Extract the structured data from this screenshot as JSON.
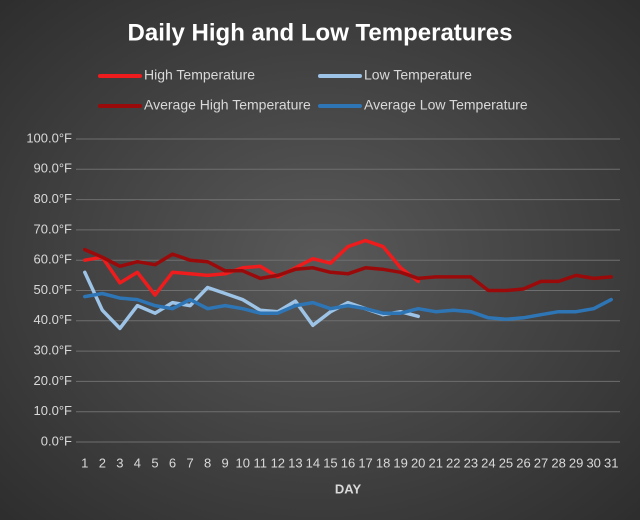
{
  "chart_data": {
    "type": "line",
    "title": "Daily High and Low Temperatures",
    "x_label": "DAY",
    "categories": [
      "1",
      "2",
      "3",
      "4",
      "5",
      "6",
      "7",
      "8",
      "9",
      "10",
      "11",
      "12",
      "13",
      "14",
      "15",
      "16",
      "17",
      "18",
      "19",
      "20",
      "21",
      "22",
      "23",
      "24",
      "25",
      "26",
      "27",
      "28",
      "29",
      "30",
      "31"
    ],
    "series": [
      {
        "name": "High Temperature",
        "color": "#ee1c1c",
        "values": [
          60,
          61,
          52.5,
          56,
          48.5,
          56,
          55.5,
          55,
          55.5,
          57.5,
          58,
          54.5,
          57.5,
          60.5,
          59,
          64.5,
          66.5,
          64.5,
          57.5,
          53,
          null,
          null,
          null,
          null,
          null,
          null,
          null,
          null,
          null,
          null,
          null
        ]
      },
      {
        "name": "Low Temperature",
        "color": "#9dc3e6",
        "values": [
          56,
          43.5,
          37.5,
          45,
          42.5,
          46,
          45,
          51,
          49,
          47,
          43.5,
          43,
          46.5,
          38.5,
          43,
          46,
          44,
          42,
          43,
          41.5,
          null,
          null,
          null,
          null,
          null,
          null,
          null,
          null,
          null,
          null,
          null
        ]
      },
      {
        "name": "Average High Temperature",
        "color": "#9b0a0a",
        "values": [
          63.5,
          61,
          58,
          59.5,
          58.5,
          62,
          60,
          59.5,
          56.5,
          56.5,
          54,
          55,
          57,
          57.5,
          56,
          55.5,
          57.5,
          57,
          56,
          54,
          54.5,
          54.5,
          54.5,
          50,
          50,
          50.5,
          53,
          53,
          55,
          54,
          54.5
        ]
      },
      {
        "name": "Average Low Temperature",
        "color": "#2e75b6",
        "values": [
          48,
          49,
          47.5,
          47,
          45,
          44,
          47,
          44,
          45,
          44,
          42.5,
          42.5,
          45,
          46,
          44,
          45,
          44,
          42.5,
          42.5,
          44,
          43,
          43.5,
          43,
          41,
          40.5,
          41,
          42,
          43,
          43,
          44,
          47
        ]
      }
    ],
    "ylim": [
      0,
      100
    ],
    "yticks": [
      {
        "value": 0,
        "label": "0.0°F"
      },
      {
        "value": 10,
        "label": "10.0°F"
      },
      {
        "value": 20,
        "label": "20.0°F"
      },
      {
        "value": 30,
        "label": "30.0°F"
      },
      {
        "value": 40,
        "label": "40.0°F"
      },
      {
        "value": 50,
        "label": "50.0°F"
      },
      {
        "value": 60,
        "label": "60.0°F"
      },
      {
        "value": 70,
        "label": "70.0°F"
      },
      {
        "value": 80,
        "label": "80.0°F"
      },
      {
        "value": 90,
        "label": "90.0°F"
      },
      {
        "value": 100,
        "label": "100.0°F"
      }
    ],
    "grid": true
  }
}
